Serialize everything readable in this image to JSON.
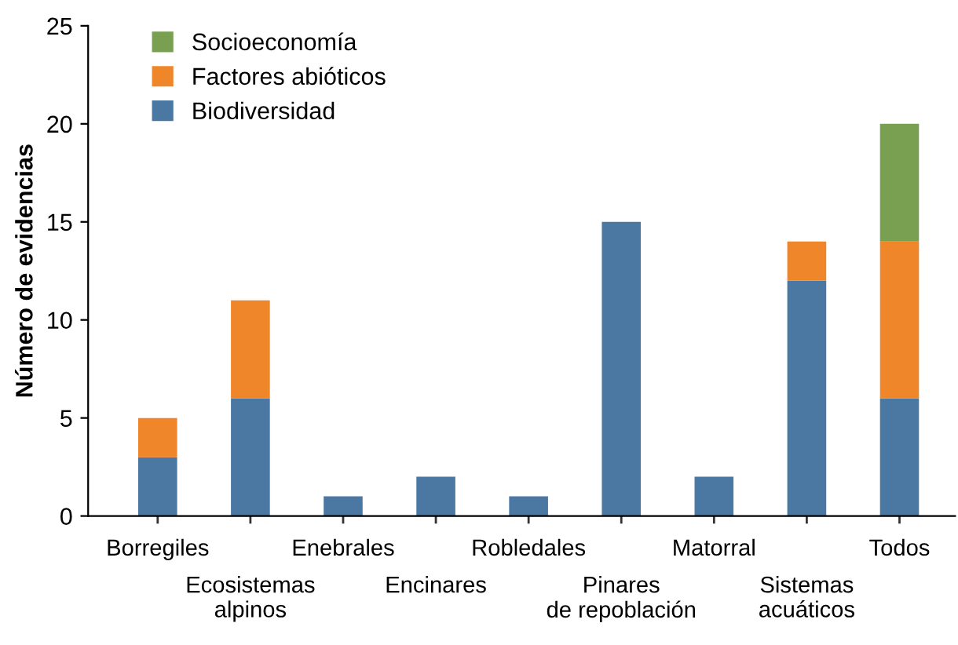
{
  "chart_data": {
    "type": "bar",
    "stacked": true,
    "ylabel": "Número de evidencias",
    "categories": [
      "Borregiles",
      "Ecosistemas\nalpinos",
      "Enebrales",
      "Encinares",
      "Robledales",
      "Pinares\nde repoblación",
      "Matorral",
      "Sistemas\nacuáticos",
      "Todos"
    ],
    "series": [
      {
        "name": "Biodiversidad",
        "color": "#4a78a3",
        "values": [
          3,
          6,
          1,
          2,
          1,
          15,
          2,
          12,
          6
        ]
      },
      {
        "name": "Factores abióticos",
        "color": "#f0862a",
        "values": [
          2,
          5,
          null,
          null,
          null,
          null,
          null,
          2,
          8
        ]
      },
      {
        "name": "Socioeconomía",
        "color": "#78a050",
        "values": [
          null,
          null,
          null,
          null,
          null,
          null,
          null,
          null,
          6
        ]
      }
    ],
    "ylim": [
      0,
      25
    ],
    "yticks": [
      0,
      5,
      10,
      15,
      20,
      25
    ],
    "grid": false,
    "legend": "top left"
  }
}
